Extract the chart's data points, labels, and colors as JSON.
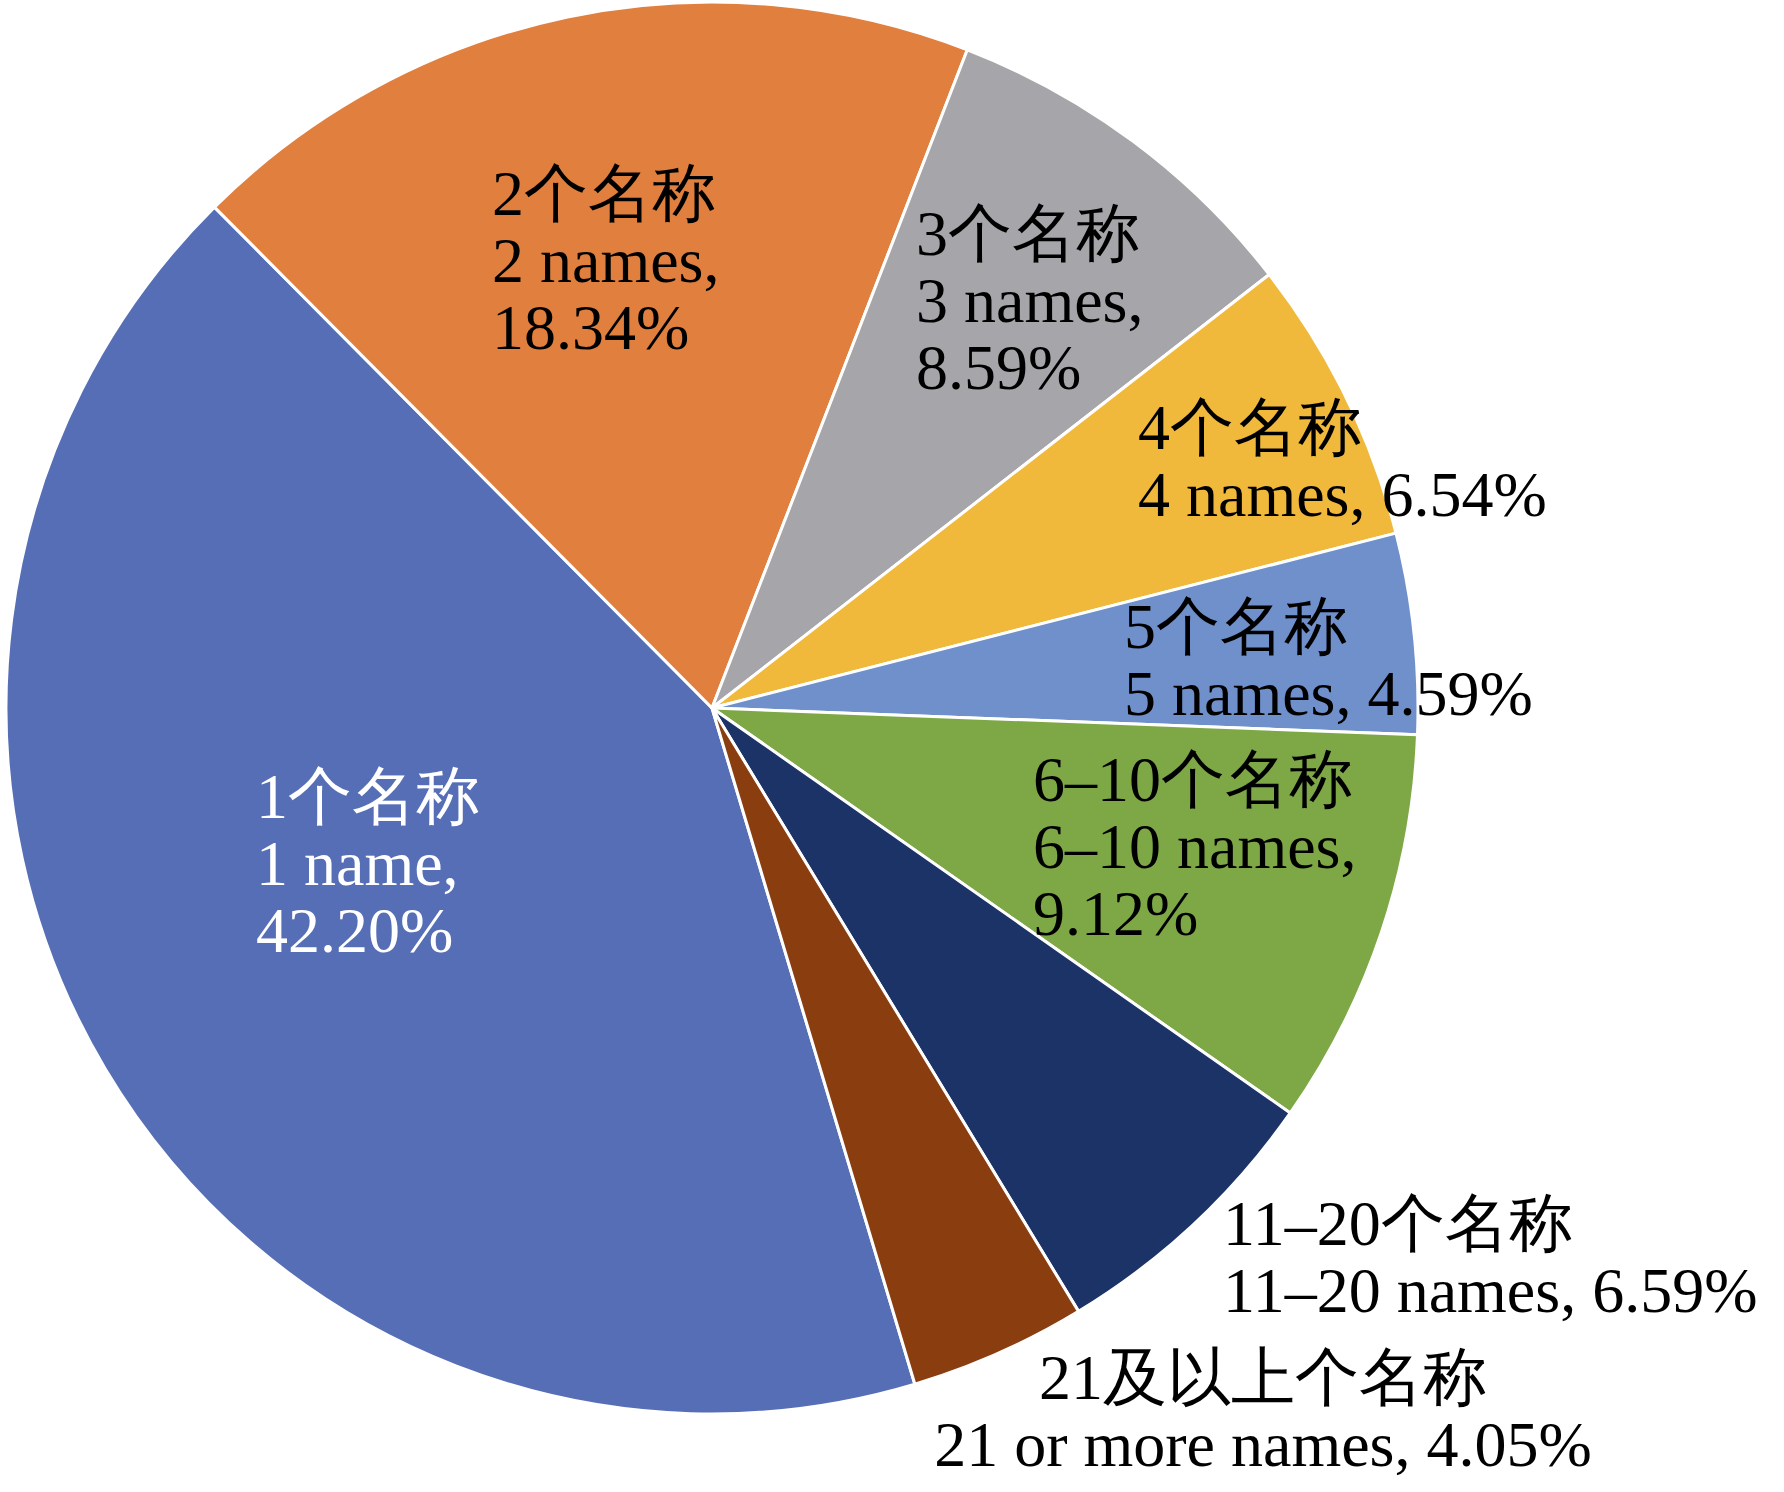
{
  "chart_data": {
    "type": "pie",
    "categories": [
      "1个名称\n1 name",
      "2个名称\n2 names",
      "3个名称\n3 names",
      "4个名称\n4 names",
      "5个名称\n5 names",
      "6–10个名称\n6–10 names",
      "11–20个名称\n11–20 names",
      "21及以上个名称\n21 or more names"
    ],
    "values": [
      42.2,
      18.34,
      8.59,
      6.54,
      4.59,
      9.12,
      6.59,
      4.05
    ],
    "value_labels": [
      ", 42.20%",
      ", 18.34%",
      ", 8.59%",
      ", 6.54%",
      ", 4.59%",
      ", 9.12%",
      ", 6.59%",
      ", 4.05%"
    ],
    "colors": [
      "#556eb6",
      "#e07f3e",
      "#a6a5a9",
      "#f0b93b",
      "#6f90ca",
      "#7ea746",
      "#1b3366",
      "#8a3e10"
    ]
  }
}
